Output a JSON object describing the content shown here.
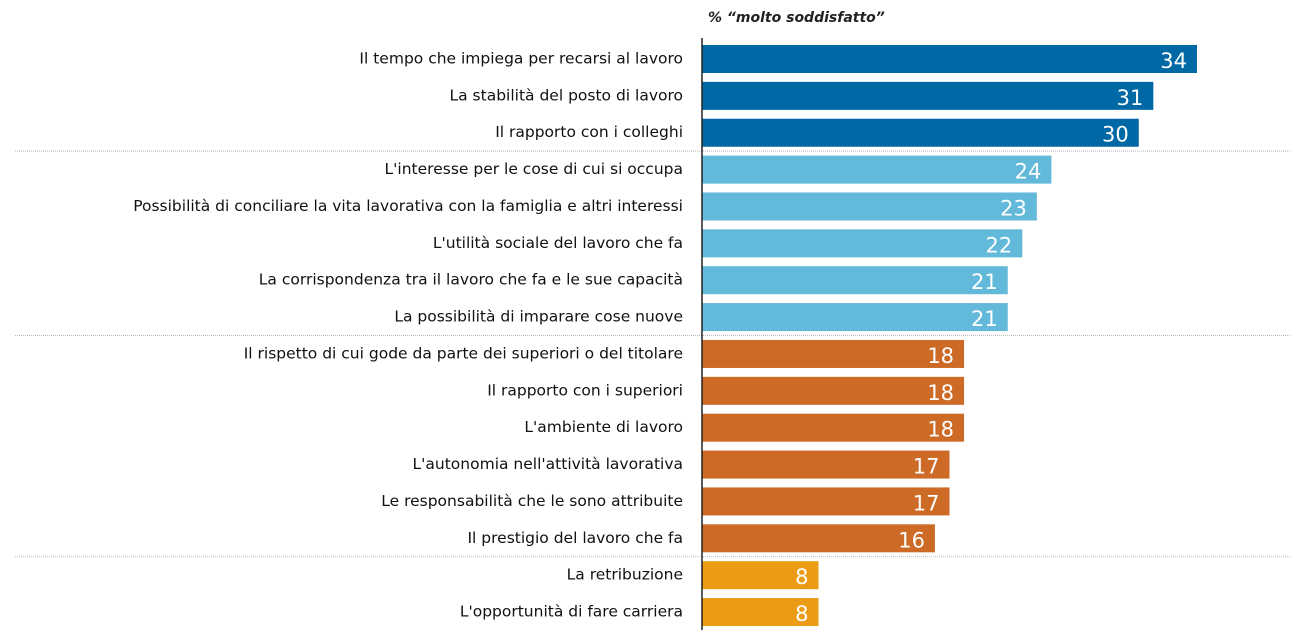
{
  "chart_data": {
    "type": "bar",
    "orientation": "horizontal",
    "title": "% “molto soddisfatto”",
    "categories": [
      "Il tempo che impiega per recarsi al lavoro",
      "La stabilità del posto di lavoro",
      "Il rapporto con i colleghi",
      "L'interesse per le cose di cui si occupa",
      "Possibilità di conciliare la vita lavorativa con la famiglia e altri interessi",
      "L'utilità sociale del lavoro che fa",
      "La corrispondenza tra il lavoro che fa e le sue capacità",
      "La possibilità di imparare cose nuove",
      "Il rispetto di cui gode da parte dei superiori o del titolare",
      "Il rapporto con i superiori",
      "L'ambiente di lavoro",
      "L'autonomia nell'attività lavorativa",
      "Le responsabilità che le sono attribuite",
      "Il prestigio del lavoro che fa",
      "La retribuzione",
      "L'opportunità di fare carriera"
    ],
    "values": [
      34,
      31,
      30,
      24,
      23,
      22,
      21,
      21,
      18,
      18,
      18,
      17,
      17,
      16,
      8,
      8
    ],
    "colors": [
      "#0068a5",
      "#0068a5",
      "#0068a5",
      "#62b9d9",
      "#62b9d9",
      "#62b9d9",
      "#62b9d9",
      "#62b9d9",
      "#cc6a26",
      "#cc6a26",
      "#cc6a26",
      "#cc6a26",
      "#cc6a26",
      "#cc6a26",
      "#eb9c14",
      "#eb9c14"
    ]
  }
}
